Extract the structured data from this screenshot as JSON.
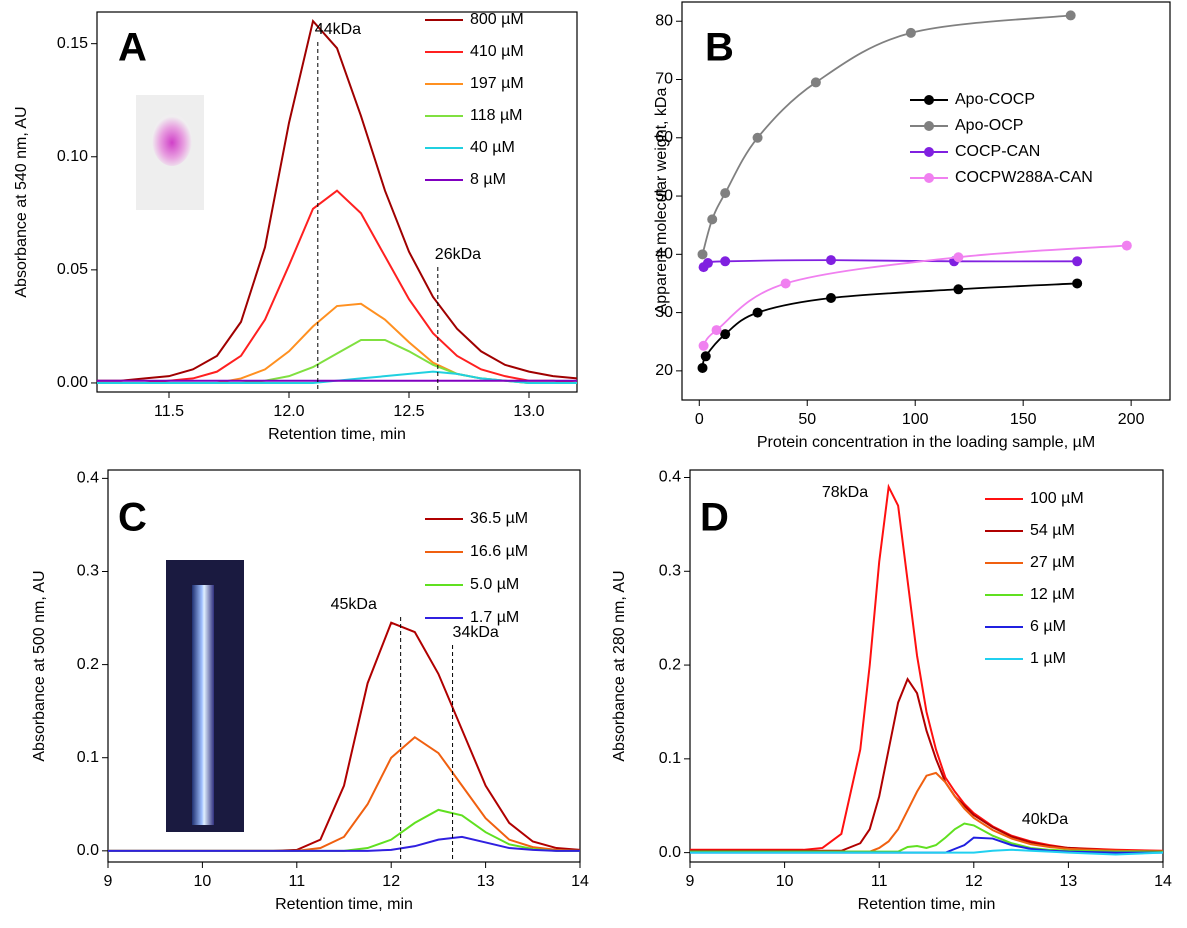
{
  "chart_data": [
    {
      "type": "line",
      "panel_label": "A",
      "xlabel": "Retention time, min",
      "ylabel": "Absorbance at 540 nm, AU",
      "xlim": [
        11.2,
        13.2
      ],
      "ylim": [
        -0.004,
        0.164
      ],
      "xticks": [
        11.5,
        {
          "value": 12.0,
          "label": "12.0"
        },
        12.5,
        {
          "value": 13.0,
          "label": "13.0"
        }
      ],
      "yticks": [
        {
          "value": 0,
          "label": "0.00"
        },
        {
          "value": 0.05,
          "label": "0.05"
        },
        {
          "value": 0.1,
          "label": "0.10"
        },
        {
          "value": 0.15,
          "label": "0.15"
        }
      ],
      "x": [
        11.2,
        11.3,
        11.4,
        11.5,
        11.6,
        11.7,
        11.8,
        11.9,
        12.0,
        12.1,
        12.2,
        12.3,
        12.4,
        12.5,
        12.6,
        12.7,
        12.8,
        12.9,
        13.0,
        13.1,
        13.2
      ],
      "series": [
        {
          "name": "800 µM",
          "color": "#a00000",
          "values": [
            0.001,
            0.001,
            0.002,
            0.003,
            0.006,
            0.012,
            0.027,
            0.06,
            0.115,
            0.16,
            0.148,
            0.118,
            0.085,
            0.058,
            0.038,
            0.024,
            0.014,
            0.008,
            0.005,
            0.003,
            0.002
          ]
        },
        {
          "name": "410 µM",
          "color": "#ff2020",
          "values": [
            0,
            0,
            0,
            0.001,
            0.002,
            0.005,
            0.012,
            0.028,
            0.052,
            0.077,
            0.085,
            0.075,
            0.056,
            0.037,
            0.022,
            0.012,
            0.006,
            0.003,
            0.001,
            0.001,
            0
          ]
        },
        {
          "name": "197 µM",
          "color": "#ff9020",
          "values": [
            0,
            0,
            0,
            0,
            0,
            0,
            0.002,
            0.006,
            0.014,
            0.025,
            0.034,
            0.035,
            0.028,
            0.018,
            0.009,
            0.004,
            0.002,
            0.001,
            0,
            0,
            0
          ]
        },
        {
          "name": "118 µM",
          "color": "#80e040",
          "values": [
            0,
            0,
            0,
            0,
            0,
            0,
            0,
            0.001,
            0.003,
            0.007,
            0.013,
            0.019,
            0.019,
            0.014,
            0.008,
            0.004,
            0.002,
            0.001,
            0,
            0,
            0
          ]
        },
        {
          "name": "40 µM",
          "color": "#20d0e0",
          "values": [
            0,
            0,
            0,
            0,
            0,
            0,
            0,
            0,
            0,
            0,
            0.001,
            0.002,
            0.003,
            0.004,
            0.005,
            0.004,
            0.002,
            0.001,
            0,
            0,
            0
          ]
        },
        {
          "name": "8 µM",
          "color": "#8000c0",
          "values": [
            0.001,
            0.001,
            0.001,
            0.001,
            0.001,
            0.001,
            0.001,
            0.001,
            0.001,
            0.001,
            0.001,
            0.001,
            0.001,
            0.001,
            0.001,
            0.001,
            0.001,
            0.001,
            0.001,
            0.001,
            0.001
          ]
        }
      ],
      "annotations": [
        {
          "text": "44kDa",
          "x": 12.12
        },
        {
          "text": "26kDa",
          "x": 12.62
        }
      ]
    },
    {
      "type": "scatter",
      "panel_label": "B",
      "xlabel": "Protein concentration in the loading sample, µM",
      "ylabel": "Apparent molecular weight, kDa",
      "xlim": [
        -8,
        218
      ],
      "ylim": [
        15,
        83.3
      ],
      "xticks": [
        0,
        50,
        100,
        150,
        200
      ],
      "yticks": [
        20,
        30,
        40,
        50,
        60,
        70,
        80
      ],
      "series": [
        {
          "name": "Apo-COCP",
          "color": "#000000",
          "x": [
            1.5,
            3,
            12,
            27,
            61,
            120,
            175
          ],
          "values": [
            20.5,
            22.5,
            26.3,
            30,
            32.5,
            34,
            35
          ]
        },
        {
          "name": "Apo-OCP",
          "color": "#808080",
          "x": [
            1.5,
            6,
            12,
            27,
            54,
            98,
            172
          ],
          "values": [
            40,
            46,
            50.5,
            60,
            69.5,
            78,
            81
          ]
        },
        {
          "name": "COCP-CAN",
          "color": "#8020e0",
          "x": [
            2,
            4,
            12,
            61,
            118,
            175
          ],
          "values": [
            37.8,
            38.5,
            38.8,
            39,
            38.8,
            38.8
          ]
        },
        {
          "name": "COCPW288A-CAN",
          "color": "#f080f0",
          "x": [
            2,
            8,
            40,
            120,
            198
          ],
          "values": [
            24.3,
            27,
            35,
            39.5,
            41.5
          ]
        }
      ]
    },
    {
      "type": "line",
      "panel_label": "C",
      "xlabel": "Retention time, min",
      "ylabel": "Absorbance at 500 nm, AU",
      "xlim": [
        9,
        14
      ],
      "ylim": [
        -0.012,
        0.409
      ],
      "xticks": [
        9,
        10,
        11,
        12,
        13,
        14
      ],
      "yticks": [
        {
          "value": 0,
          "label": "0.0"
        },
        {
          "value": 0.1,
          "label": "0.1"
        },
        {
          "value": 0.2,
          "label": "0.2"
        },
        {
          "value": 0.3,
          "label": "0.3"
        },
        {
          "value": 0.4,
          "label": "0.4"
        }
      ],
      "x": [
        9,
        9.25,
        9.5,
        9.75,
        10,
        10.25,
        10.5,
        10.75,
        11,
        11.25,
        11.5,
        11.75,
        12,
        12.25,
        12.5,
        12.75,
        13,
        13.25,
        13.5,
        13.75,
        14
      ],
      "series": [
        {
          "name": "36.5 µM",
          "color": "#b00000",
          "values": [
            0,
            0,
            0,
            0,
            0,
            0,
            0,
            0,
            0.001,
            0.012,
            0.07,
            0.18,
            0.245,
            0.235,
            0.19,
            0.13,
            0.07,
            0.03,
            0.01,
            0.003,
            0.001
          ]
        },
        {
          "name": "16.6 µM",
          "color": "#f06010",
          "values": [
            0,
            0,
            0,
            0,
            0,
            0,
            0,
            0,
            0,
            0.003,
            0.015,
            0.05,
            0.1,
            0.122,
            0.105,
            0.07,
            0.035,
            0.012,
            0.004,
            0.001,
            0
          ]
        },
        {
          "name": "5.0 µM",
          "color": "#60e020",
          "values": [
            0,
            0,
            0,
            0,
            0,
            0,
            0,
            0,
            0,
            0,
            0,
            0.003,
            0.012,
            0.03,
            0.044,
            0.038,
            0.02,
            0.007,
            0.002,
            0,
            0
          ]
        },
        {
          "name": "1.7 µM",
          "color": "#3020e0",
          "values": [
            0,
            0,
            0,
            0,
            0,
            0,
            0,
            0,
            0,
            0,
            0,
            0,
            0.001,
            0.005,
            0.012,
            0.015,
            0.009,
            0.003,
            0.001,
            0,
            0
          ]
        }
      ],
      "annotations": [
        {
          "text": "45kDa",
          "x": 12.1
        },
        {
          "text": "34kDa",
          "x": 12.65
        }
      ]
    },
    {
      "type": "line",
      "panel_label": "D",
      "xlabel": "Retention time, min",
      "ylabel": "Absorbance at 280 nm, AU",
      "xlim": [
        9,
        14
      ],
      "ylim": [
        -0.01,
        0.408
      ],
      "xticks": [
        9,
        10,
        11,
        12,
        13,
        14
      ],
      "yticks": [
        {
          "value": 0,
          "label": "0.0"
        },
        {
          "value": 0.1,
          "label": "0.1"
        },
        {
          "value": 0.2,
          "label": "0.2"
        },
        {
          "value": 0.3,
          "label": "0.3"
        },
        {
          "value": 0.4,
          "label": "0.4"
        }
      ],
      "x": [
        9,
        9.5,
        10,
        10.2,
        10.4,
        10.6,
        10.8,
        10.9,
        11,
        11.1,
        11.2,
        11.3,
        11.4,
        11.5,
        11.6,
        11.7,
        11.8,
        11.9,
        12,
        12.2,
        12.4,
        12.6,
        12.8,
        13,
        13.5,
        14
      ],
      "series": [
        {
          "name": "100 µM",
          "color": "#ff1010",
          "values": [
            0.003,
            0.003,
            0.003,
            0.003,
            0.005,
            0.02,
            0.11,
            0.2,
            0.31,
            0.39,
            0.37,
            0.29,
            0.21,
            0.15,
            0.11,
            0.08,
            0.065,
            0.052,
            0.042,
            0.028,
            0.018,
            0.012,
            0.008,
            0.005,
            0.003,
            0.002
          ]
        },
        {
          "name": "54 µM",
          "color": "#b00000",
          "values": [
            0.002,
            0.002,
            0.002,
            0.002,
            0.002,
            0.002,
            0.01,
            0.025,
            0.06,
            0.11,
            0.16,
            0.185,
            0.17,
            0.13,
            0.1,
            0.075,
            0.06,
            0.05,
            0.04,
            0.027,
            0.017,
            0.011,
            0.007,
            0.005,
            0.002,
            0.001
          ]
        },
        {
          "name": "27 µM",
          "color": "#f06010",
          "values": [
            0.001,
            0.001,
            0.001,
            0.001,
            0.001,
            0.001,
            0.001,
            0.001,
            0.005,
            0.012,
            0.025,
            0.045,
            0.065,
            0.082,
            0.085,
            0.075,
            0.06,
            0.047,
            0.037,
            0.024,
            0.015,
            0.009,
            0.006,
            0.004,
            0.002,
            0.001
          ]
        },
        {
          "name": "12 µM",
          "color": "#60e020",
          "values": [
            0.001,
            0.001,
            0.001,
            0.001,
            0.001,
            0.001,
            0.001,
            0.001,
            0.001,
            0.001,
            0.001,
            0.006,
            0.007,
            0.005,
            0.008,
            0.016,
            0.025,
            0.031,
            0.029,
            0.018,
            0.01,
            0.005,
            0.003,
            0.002,
            0.001,
            0.001
          ]
        },
        {
          "name": "6 µM",
          "color": "#2020e0",
          "values": [
            0,
            0,
            0,
            0,
            0,
            0,
            0,
            0,
            0,
            0,
            0,
            0,
            0,
            0,
            0,
            0,
            0.004,
            0.008,
            0.016,
            0.015,
            0.008,
            0.004,
            0.002,
            0.001,
            0,
            0
          ]
        },
        {
          "name": "1 µM",
          "color": "#20d0f0",
          "values": [
            0,
            0,
            0,
            0,
            0,
            0,
            0,
            0,
            0,
            0,
            0,
            0,
            0,
            0,
            0,
            0,
            0,
            0,
            0,
            0.002,
            0.003,
            0.002,
            0.001,
            0,
            -0.002,
            0
          ]
        }
      ],
      "annotations": [
        {
          "text": "78kDa"
        },
        {
          "text": "40kDa"
        }
      ]
    }
  ]
}
